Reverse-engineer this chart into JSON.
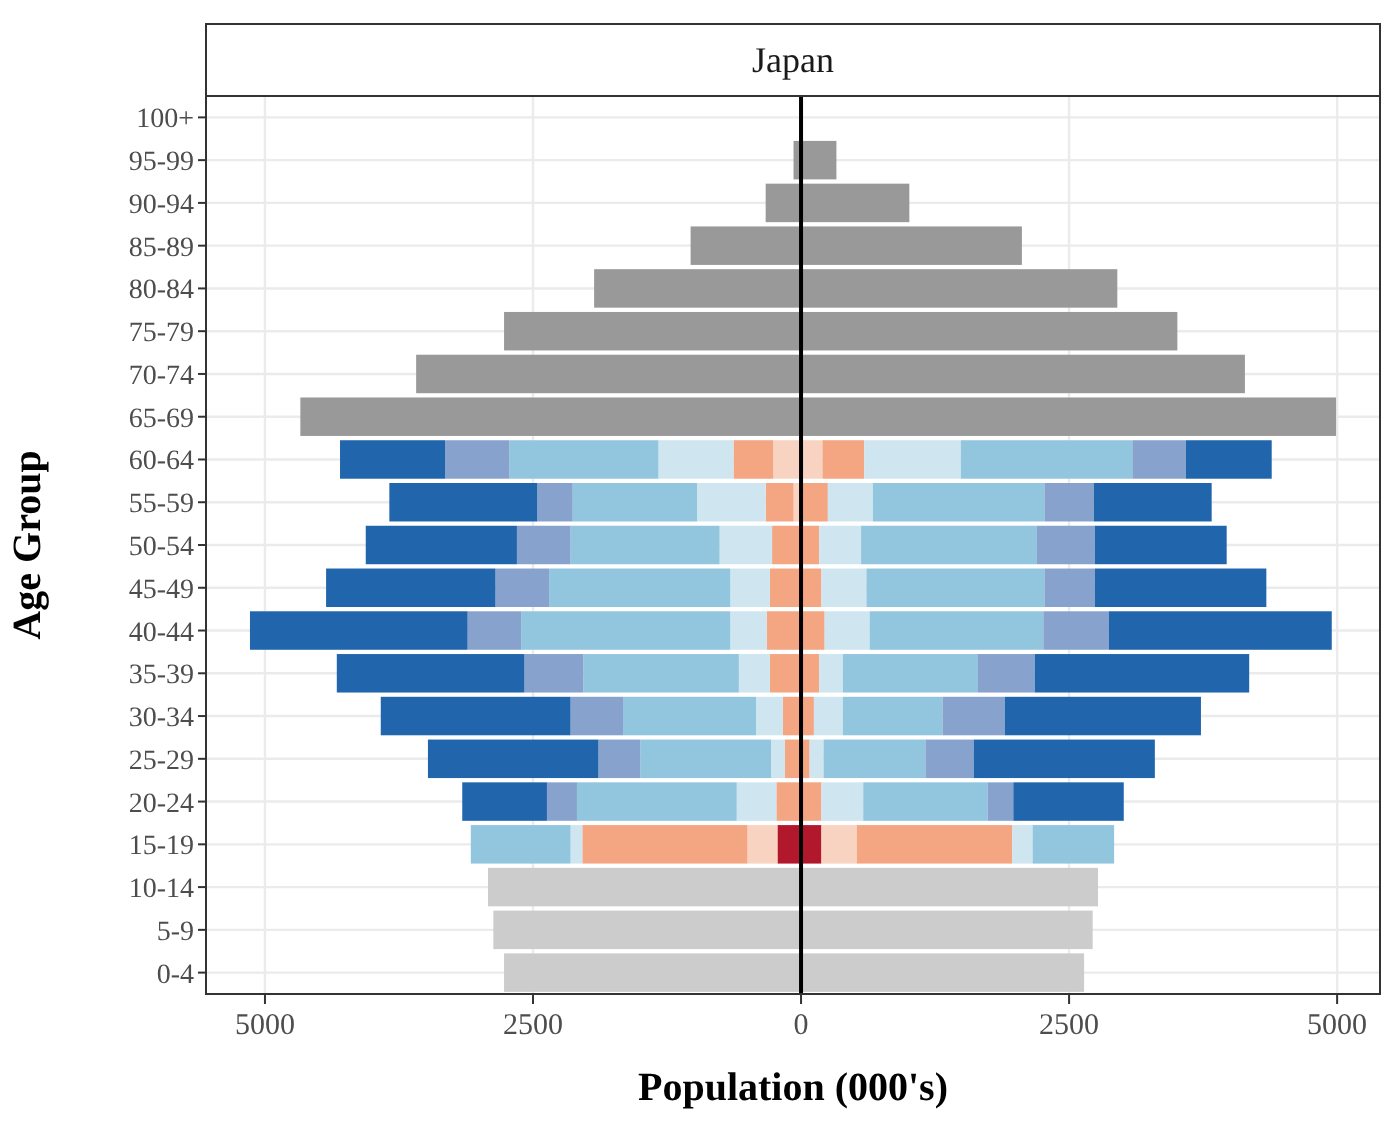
{
  "chart_data": {
    "type": "bar",
    "orientation": "horizontal",
    "stacked": true,
    "title": "Japan",
    "xlabel": "Population (000's)",
    "ylabel": "Age Group",
    "categories": [
      "100+",
      "95-99",
      "90-94",
      "85-89",
      "80-84",
      "75-79",
      "70-74",
      "65-69",
      "60-64",
      "55-59",
      "50-54",
      "45-49",
      "40-44",
      "35-39",
      "30-34",
      "25-29",
      "20-24",
      "15-19",
      "10-14",
      "5-9",
      "0-4"
    ],
    "xlim": [
      -5550,
      5400
    ],
    "xticks": [
      {
        "value": -5000,
        "label": "5000"
      },
      {
        "value": -2500,
        "label": "2500"
      },
      0,
      2500,
      5000
    ],
    "grid": true,
    "ref_lines": [
      {
        "axis": "x",
        "value": 0,
        "color": "#000000"
      }
    ],
    "series": [
      {
        "color": "#cccccc",
        "values": [
          null,
          null,
          null,
          null,
          null,
          null,
          null,
          null,
          null,
          null,
          null,
          null,
          null,
          null,
          null,
          null,
          null,
          null,
          2770,
          2720,
          2640
        ]
      },
      {
        "color": "#999999",
        "values": [
          0,
          330,
          1010,
          2060,
          2950,
          3510,
          4140,
          4990,
          null,
          null,
          null,
          null,
          null,
          null,
          null,
          null,
          null,
          null,
          null,
          null,
          null
        ]
      },
      {
        "color": "#b2182b",
        "values": [
          null,
          null,
          null,
          null,
          null,
          null,
          null,
          null,
          null,
          null,
          null,
          null,
          null,
          null,
          null,
          null,
          null,
          190,
          null,
          null,
          null
        ]
      },
      {
        "color": "#f9d3c1",
        "values": [
          null,
          null,
          null,
          null,
          null,
          null,
          null,
          null,
          200,
          null,
          null,
          null,
          null,
          null,
          null,
          null,
          null,
          330,
          null,
          null,
          null
        ]
      },
      {
        "color": "#f4a582",
        "values": [
          null,
          null,
          null,
          null,
          null,
          null,
          null,
          null,
          390,
          250,
          170,
          190,
          220,
          170,
          120,
          80,
          190,
          1450,
          null,
          null,
          null
        ]
      },
      {
        "color": "#cfe6f1",
        "values": [
          null,
          null,
          null,
          null,
          null,
          null,
          null,
          null,
          900,
          420,
          390,
          420,
          420,
          220,
          270,
          130,
          390,
          190,
          null,
          null,
          null
        ]
      },
      {
        "color": "#92c5de",
        "values": [
          null,
          null,
          null,
          null,
          null,
          null,
          null,
          null,
          1600,
          1600,
          1640,
          1660,
          1620,
          1260,
          930,
          950,
          1160,
          760,
          null,
          null,
          null
        ]
      },
      {
        "color": "#87a3cd",
        "values": [
          null,
          null,
          null,
          null,
          null,
          null,
          null,
          null,
          500,
          460,
          540,
          470,
          610,
          530,
          580,
          450,
          240,
          null,
          null,
          null,
          null
        ]
      },
      {
        "color": "#2166ac",
        "values": [
          null,
          null,
          null,
          null,
          null,
          null,
          null,
          null,
          800,
          1100,
          1230,
          1600,
          2080,
          2000,
          1830,
          1690,
          1030,
          null,
          null,
          null,
          null
        ]
      },
      {
        "color": "#cccccc",
        "values": [
          null,
          null,
          null,
          null,
          null,
          null,
          null,
          null,
          null,
          null,
          null,
          null,
          null,
          null,
          null,
          null,
          null,
          null,
          -2920,
          -2870,
          -2770
        ]
      },
      {
        "color": "#999999",
        "values": [
          0,
          -70,
          -330,
          -1030,
          -1930,
          -2770,
          -3590,
          -4670,
          null,
          null,
          null,
          null,
          null,
          null,
          null,
          null,
          null,
          null,
          null,
          null,
          null
        ]
      },
      {
        "color": "#b2182b",
        "values": [
          null,
          null,
          null,
          null,
          null,
          null,
          null,
          null,
          null,
          null,
          null,
          null,
          null,
          null,
          null,
          null,
          null,
          -220,
          null,
          null,
          null
        ]
      },
      {
        "color": "#f9d3c1",
        "values": [
          null,
          null,
          null,
          null,
          null,
          null,
          null,
          null,
          -260,
          -70,
          null,
          null,
          null,
          null,
          null,
          null,
          null,
          -280,
          null,
          null,
          null
        ]
      },
      {
        "color": "#f4a582",
        "values": [
          null,
          null,
          null,
          null,
          null,
          null,
          null,
          null,
          -370,
          -260,
          -270,
          -290,
          -320,
          -290,
          -170,
          -150,
          -230,
          -1540,
          null,
          null,
          null
        ]
      },
      {
        "color": "#cfe6f1",
        "values": [
          null,
          null,
          null,
          null,
          null,
          null,
          null,
          null,
          -700,
          -640,
          -490,
          -370,
          -340,
          -290,
          -250,
          -130,
          -370,
          -110,
          null,
          null,
          null
        ]
      },
      {
        "color": "#92c5de",
        "values": [
          null,
          null,
          null,
          null,
          null,
          null,
          null,
          null,
          -1390,
          -1160,
          -1390,
          -1690,
          -1950,
          -1450,
          -1240,
          -1220,
          -1490,
          -930,
          null,
          null,
          null
        ]
      },
      {
        "color": "#87a3cd",
        "values": [
          null,
          null,
          null,
          null,
          null,
          null,
          null,
          null,
          -600,
          -330,
          -500,
          -500,
          -500,
          -550,
          -490,
          -390,
          -280,
          null,
          null,
          null,
          null
        ]
      },
      {
        "color": "#2166ac",
        "values": [
          null,
          null,
          null,
          null,
          null,
          null,
          null,
          null,
          -980,
          -1380,
          -1410,
          -1580,
          -2030,
          -1750,
          -1770,
          -1590,
          -790,
          null,
          null,
          null,
          null
        ]
      }
    ]
  }
}
